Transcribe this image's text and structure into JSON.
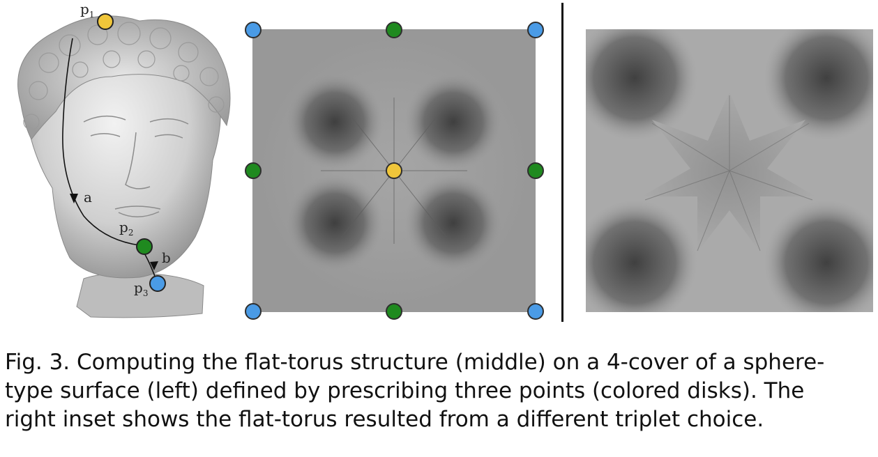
{
  "left_panel": {
    "points": [
      {
        "label": "p",
        "sub": "1",
        "color": "#f0c63a"
      },
      {
        "label": "p",
        "sub": "2",
        "color": "#1f8a1f"
      },
      {
        "label": "p",
        "sub": "3",
        "color": "#4a9be6"
      }
    ],
    "path_labels": [
      "a",
      "b"
    ]
  },
  "middle_panel": {
    "disks": [
      {
        "color": "#4a9be6"
      },
      {
        "color": "#1f8a1f"
      },
      {
        "color": "#4a9be6"
      },
      {
        "color": "#1f8a1f"
      },
      {
        "color": "#f0c63a"
      },
      {
        "color": "#1f8a1f"
      },
      {
        "color": "#4a9be6"
      },
      {
        "color": "#1f8a1f"
      },
      {
        "color": "#4a9be6"
      }
    ]
  },
  "caption": {
    "line1": "Fig. 3.  Computing the flat-torus structure (middle) on a 4-cover of a sphere-",
    "line2": "type surface (left) defined by prescribing three points (colored disks). The",
    "line3": "right inset shows the flat-torus resulted from a different triplet choice."
  }
}
